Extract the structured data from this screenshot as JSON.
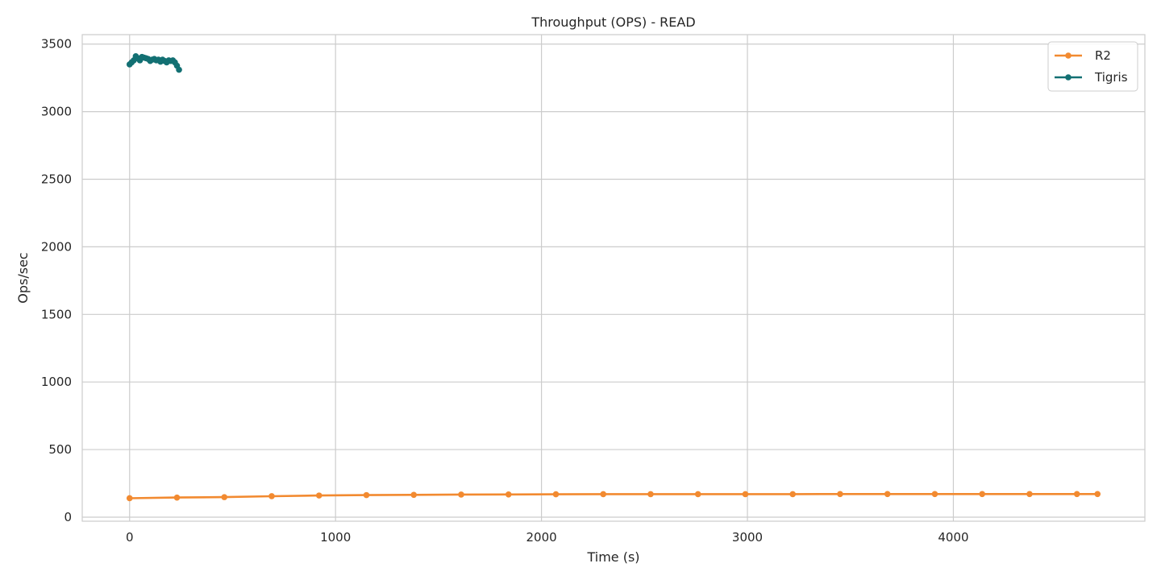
{
  "chart_data": {
    "type": "line",
    "title": "Throughput (OPS) - READ",
    "xlabel": "Time (s)",
    "ylabel": "Ops/sec",
    "xlim": [
      -230,
      4930
    ],
    "ylim": [
      -30,
      3570
    ],
    "xticks": [
      0,
      1000,
      2000,
      3000,
      4000
    ],
    "yticks": [
      0,
      500,
      1000,
      1500,
      2000,
      2500,
      3000,
      3500
    ],
    "grid": true,
    "legend_position": "top-right",
    "series": [
      {
        "name": "R2",
        "color": "#f28a30",
        "x": [
          0,
          230,
          460,
          690,
          920,
          1150,
          1380,
          1610,
          1840,
          2070,
          2300,
          2530,
          2760,
          2990,
          3220,
          3450,
          3680,
          3910,
          4140,
          4370,
          4600,
          4700
        ],
        "y": [
          140,
          145,
          148,
          155,
          160,
          163,
          165,
          167,
          168,
          169,
          170,
          170,
          170,
          170,
          170,
          171,
          171,
          171,
          171,
          171,
          171,
          171
        ]
      },
      {
        "name": "Tigris",
        "color": "#137073",
        "x": [
          0,
          10,
          20,
          30,
          40,
          50,
          60,
          70,
          80,
          90,
          100,
          110,
          120,
          130,
          140,
          150,
          160,
          170,
          180,
          190,
          200,
          210,
          220,
          230,
          240
        ],
        "y": [
          3350,
          3365,
          3380,
          3410,
          3395,
          3380,
          3405,
          3400,
          3395,
          3390,
          3375,
          3385,
          3390,
          3380,
          3385,
          3370,
          3385,
          3375,
          3365,
          3380,
          3375,
          3380,
          3365,
          3340,
          3310
        ]
      }
    ]
  }
}
